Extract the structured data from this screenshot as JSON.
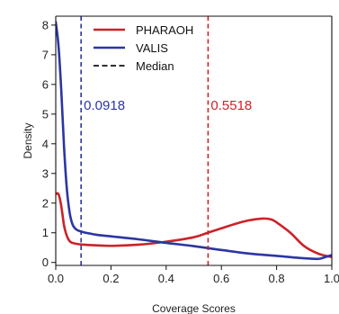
{
  "chart_data": {
    "type": "line",
    "title": "",
    "xlabel": "Coverage Scores",
    "ylabel": "Density",
    "xlim": [
      0,
      1.0
    ],
    "ylim": [
      -0.1,
      8.3
    ],
    "x_ticks": [
      0.0,
      0.2,
      0.4,
      0.6,
      0.8,
      1.0
    ],
    "x_tick_labels": [
      "0.0",
      "0.2",
      "0.4",
      "0.6",
      "0.8",
      "1.0"
    ],
    "y_ticks": [
      0,
      1,
      2,
      3,
      4,
      5,
      6,
      7,
      8
    ],
    "y_tick_labels": [
      "0",
      "1",
      "2",
      "3",
      "4",
      "5",
      "6",
      "7",
      "8"
    ],
    "grid": false,
    "legend_position": "top-center",
    "series": [
      {
        "name": "PHARAOH",
        "color": "#cc2229",
        "x": [
          0.0,
          0.01,
          0.02,
          0.03,
          0.04,
          0.05,
          0.06,
          0.08,
          0.1,
          0.14,
          0.2,
          0.3,
          0.4,
          0.5,
          0.55,
          0.6,
          0.65,
          0.7,
          0.75,
          0.78,
          0.8,
          0.85,
          0.9,
          0.95,
          1.0
        ],
        "y": [
          2.3,
          2.3,
          1.9,
          1.25,
          0.9,
          0.72,
          0.66,
          0.62,
          0.6,
          0.58,
          0.56,
          0.6,
          0.7,
          0.85,
          1.0,
          1.15,
          1.3,
          1.42,
          1.48,
          1.45,
          1.35,
          1.0,
          0.55,
          0.3,
          0.18
        ]
      },
      {
        "name": "VALIS",
        "color": "#2b36a3",
        "x": [
          0.0,
          0.01,
          0.02,
          0.03,
          0.04,
          0.05,
          0.06,
          0.07,
          0.08,
          0.1,
          0.12,
          0.15,
          0.2,
          0.3,
          0.4,
          0.5,
          0.6,
          0.7,
          0.8,
          0.9,
          0.95,
          0.97,
          1.0
        ],
        "y": [
          8.1,
          7.3,
          5.8,
          3.9,
          2.5,
          1.7,
          1.3,
          1.15,
          1.08,
          1.02,
          0.98,
          0.93,
          0.88,
          0.78,
          0.66,
          0.55,
          0.42,
          0.3,
          0.22,
          0.14,
          0.12,
          0.16,
          0.25
        ]
      }
    ],
    "medians": [
      {
        "name": "Median",
        "value": 0.0918,
        "label": "0.0918",
        "color": "#2b36a3",
        "label_y": 5.3
      },
      {
        "name": "Median",
        "value": 0.5518,
        "label": "0.5518",
        "color": "#cc2229",
        "label_y": 5.3
      }
    ],
    "legend": [
      {
        "label": "PHARAOH",
        "color": "#cc2229",
        "style": "solid"
      },
      {
        "label": "VALIS",
        "color": "#2b36a3",
        "style": "solid"
      },
      {
        "label": "Median",
        "color": "#111111",
        "style": "dashed"
      }
    ]
  }
}
